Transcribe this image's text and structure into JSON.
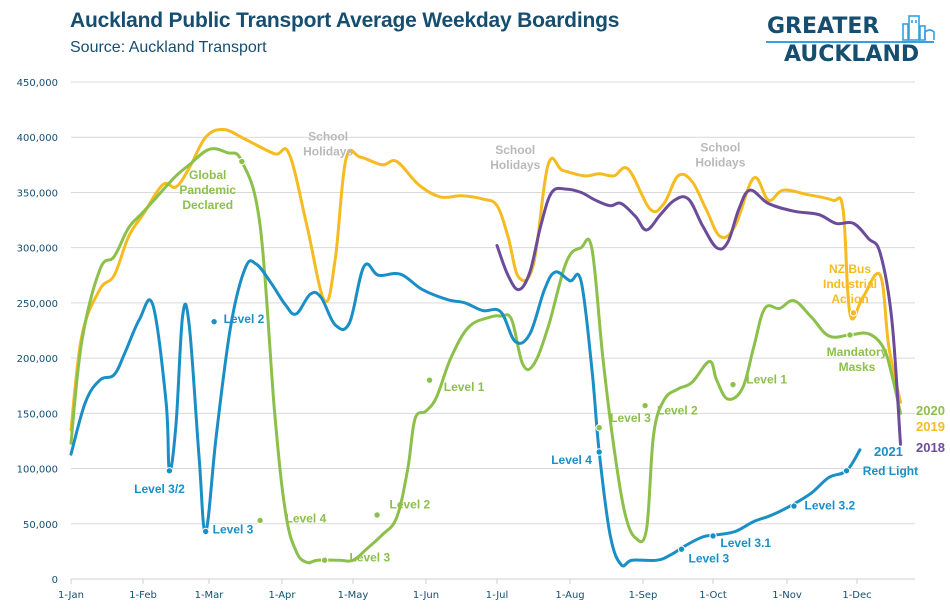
{
  "header": {
    "title": "Auckland Public Transport Average Weekday Boardings",
    "subtitle": "Source: Auckland Transport"
  },
  "logo": {
    "line1": "GREATER",
    "line2": "AUCKLAND"
  },
  "chart_data": {
    "type": "line",
    "title": "Auckland Public Transport Average Weekday Boardings",
    "subtitle": "Source: Auckland Transport",
    "xlabel": "",
    "ylabel": "",
    "x_unit": "months since 1-Jan (0 = 1-Jan, 11 = 1-Dec)",
    "xlim": [
      0,
      12
    ],
    "ylim": [
      0,
      450000
    ],
    "grid": true,
    "x_ticks": [
      "1-Jan",
      "1-Feb",
      "1-Mar",
      "1-Apr",
      "1-May",
      "1-Jun",
      "1-Jul",
      "1-Aug",
      "1-Sep",
      "1-Oct",
      "1-Nov",
      "1-Dec"
    ],
    "y_ticks": [
      0,
      50000,
      100000,
      150000,
      200000,
      250000,
      300000,
      350000,
      400000,
      450000
    ],
    "y_tick_labels": [
      "0",
      "50,000",
      "100,000",
      "150,000",
      "200,000",
      "250,000",
      "300,000",
      "350,000",
      "400,000",
      "450,000"
    ],
    "colors": {
      "2018": "#6b4c9a",
      "2019": "#f5bb21",
      "2020": "#8cc04b",
      "2021": "#1a8fc6",
      "grid": "#d9d9d9",
      "axis_text": "#164e70",
      "holiday": "#b9b9b9"
    },
    "series": [
      {
        "name": "2019",
        "color_key": "2019",
        "points": [
          [
            0,
            135000
          ],
          [
            0.15,
            220000
          ],
          [
            0.4,
            262000
          ],
          [
            0.6,
            275000
          ],
          [
            0.8,
            310000
          ],
          [
            1.0,
            330000
          ],
          [
            1.3,
            357000
          ],
          [
            1.5,
            355000
          ],
          [
            1.7,
            372000
          ],
          [
            1.95,
            400000
          ],
          [
            2.2,
            407000
          ],
          [
            2.5,
            398000
          ],
          [
            2.9,
            385000
          ],
          [
            3.1,
            385000
          ],
          [
            3.35,
            320000
          ],
          [
            3.6,
            252000
          ],
          [
            3.75,
            290000
          ],
          [
            3.9,
            380000
          ],
          [
            4.1,
            382000
          ],
          [
            4.4,
            375000
          ],
          [
            4.6,
            378000
          ],
          [
            4.9,
            357000
          ],
          [
            5.2,
            346000
          ],
          [
            5.5,
            347000
          ],
          [
            5.8,
            344000
          ],
          [
            6.0,
            338000
          ],
          [
            6.15,
            310000
          ],
          [
            6.3,
            273000
          ],
          [
            6.5,
            285000
          ],
          [
            6.7,
            375000
          ],
          [
            6.9,
            370000
          ],
          [
            7.2,
            365000
          ],
          [
            7.4,
            367000
          ],
          [
            7.6,
            365000
          ],
          [
            7.8,
            371000
          ],
          [
            8.1,
            335000
          ],
          [
            8.3,
            340000
          ],
          [
            8.5,
            365000
          ],
          [
            8.7,
            360000
          ],
          [
            8.9,
            335000
          ],
          [
            9.1,
            310000
          ],
          [
            9.3,
            320000
          ],
          [
            9.55,
            363000
          ],
          [
            9.75,
            343000
          ],
          [
            9.95,
            352000
          ],
          [
            10.3,
            348000
          ],
          [
            10.65,
            343000
          ],
          [
            10.8,
            335000
          ],
          [
            10.9,
            240000
          ],
          [
            11.1,
            255000
          ],
          [
            11.4,
            275000
          ],
          [
            11.55,
            210000
          ],
          [
            11.75,
            160000
          ]
        ]
      },
      {
        "name": "2020",
        "color_key": "2020",
        "points": [
          [
            0,
            123000
          ],
          [
            0.15,
            215000
          ],
          [
            0.4,
            280000
          ],
          [
            0.6,
            292000
          ],
          [
            0.8,
            318000
          ],
          [
            1.0,
            332000
          ],
          [
            1.3,
            352000
          ],
          [
            1.5,
            365000
          ],
          [
            1.7,
            375000
          ],
          [
            2.0,
            389000
          ],
          [
            2.25,
            386000
          ],
          [
            2.45,
            378000
          ],
          [
            2.7,
            320000
          ],
          [
            2.9,
            150000
          ],
          [
            3.05,
            60000
          ],
          [
            3.2,
            25000
          ],
          [
            3.35,
            15000
          ],
          [
            3.5,
            17000
          ],
          [
            3.8,
            17000
          ],
          [
            4.0,
            17000
          ],
          [
            4.2,
            28000
          ],
          [
            4.4,
            40000
          ],
          [
            4.6,
            56000
          ],
          [
            4.75,
            100000
          ],
          [
            4.85,
            145000
          ],
          [
            5.0,
            152000
          ],
          [
            5.15,
            165000
          ],
          [
            5.35,
            200000
          ],
          [
            5.6,
            228000
          ],
          [
            5.9,
            237000
          ],
          [
            6.05,
            238000
          ],
          [
            6.2,
            235000
          ],
          [
            6.35,
            195000
          ],
          [
            6.5,
            194000
          ],
          [
            6.7,
            228000
          ],
          [
            6.95,
            287000
          ],
          [
            7.15,
            300000
          ],
          [
            7.3,
            299000
          ],
          [
            7.45,
            200000
          ],
          [
            7.6,
            120000
          ],
          [
            7.75,
            60000
          ],
          [
            7.9,
            37000
          ],
          [
            8.05,
            45000
          ],
          [
            8.15,
            130000
          ],
          [
            8.3,
            162000
          ],
          [
            8.5,
            172000
          ],
          [
            8.7,
            178000
          ],
          [
            8.95,
            197000
          ],
          [
            9.05,
            180000
          ],
          [
            9.2,
            163000
          ],
          [
            9.4,
            173000
          ],
          [
            9.55,
            210000
          ],
          [
            9.7,
            245000
          ],
          [
            9.9,
            245000
          ],
          [
            10.1,
            252000
          ],
          [
            10.35,
            237000
          ],
          [
            10.6,
            220000
          ],
          [
            10.9,
            221000
          ],
          [
            11.2,
            222000
          ],
          [
            11.45,
            210000
          ],
          [
            11.6,
            185000
          ],
          [
            11.75,
            150000
          ]
        ]
      },
      {
        "name": "2018",
        "color_key": "2018",
        "points": [
          [
            6.0,
            302000
          ],
          [
            6.15,
            275000
          ],
          [
            6.3,
            262000
          ],
          [
            6.45,
            278000
          ],
          [
            6.6,
            320000
          ],
          [
            6.75,
            350000
          ],
          [
            6.95,
            353000
          ],
          [
            7.15,
            350000
          ],
          [
            7.35,
            343000
          ],
          [
            7.55,
            338000
          ],
          [
            7.7,
            340000
          ],
          [
            7.9,
            328000
          ],
          [
            8.05,
            316000
          ],
          [
            8.25,
            330000
          ],
          [
            8.45,
            343000
          ],
          [
            8.65,
            344000
          ],
          [
            8.85,
            320000
          ],
          [
            9.05,
            300000
          ],
          [
            9.2,
            305000
          ],
          [
            9.35,
            335000
          ],
          [
            9.5,
            352000
          ],
          [
            9.75,
            340000
          ],
          [
            10.1,
            333000
          ],
          [
            10.45,
            330000
          ],
          [
            10.7,
            322000
          ],
          [
            10.95,
            322000
          ],
          [
            11.2,
            308000
          ],
          [
            11.4,
            295000
          ],
          [
            11.6,
            235000
          ],
          [
            11.75,
            122000
          ]
        ]
      },
      {
        "name": "2021",
        "color_key": "2021",
        "points": [
          [
            0,
            113000
          ],
          [
            0.2,
            160000
          ],
          [
            0.4,
            180000
          ],
          [
            0.6,
            185000
          ],
          [
            0.75,
            205000
          ],
          [
            0.95,
            235000
          ],
          [
            1.15,
            248000
          ],
          [
            1.35,
            160000
          ],
          [
            1.4,
            98000
          ],
          [
            1.5,
            140000
          ],
          [
            1.6,
            238000
          ],
          [
            1.7,
            230000
          ],
          [
            1.85,
            110000
          ],
          [
            1.95,
            43000
          ],
          [
            2.1,
            130000
          ],
          [
            2.3,
            230000
          ],
          [
            2.5,
            282000
          ],
          [
            2.65,
            285000
          ],
          [
            2.85,
            268000
          ],
          [
            3.05,
            248000
          ],
          [
            3.2,
            240000
          ],
          [
            3.4,
            258000
          ],
          [
            3.55,
            255000
          ],
          [
            3.75,
            230000
          ],
          [
            3.95,
            232000
          ],
          [
            4.15,
            283000
          ],
          [
            4.35,
            275000
          ],
          [
            4.65,
            276000
          ],
          [
            4.95,
            262000
          ],
          [
            5.3,
            253000
          ],
          [
            5.55,
            250000
          ],
          [
            5.8,
            243000
          ],
          [
            6.05,
            242000
          ],
          [
            6.25,
            215000
          ],
          [
            6.45,
            222000
          ],
          [
            6.65,
            262000
          ],
          [
            6.8,
            278000
          ],
          [
            7.0,
            270000
          ],
          [
            7.15,
            270000
          ],
          [
            7.3,
            190000
          ],
          [
            7.4,
            115000
          ],
          [
            7.55,
            40000
          ],
          [
            7.7,
            13000
          ],
          [
            7.85,
            17000
          ],
          [
            8.2,
            17000
          ],
          [
            8.4,
            22000
          ],
          [
            8.6,
            30000
          ],
          [
            8.85,
            38000
          ],
          [
            9.05,
            40000
          ],
          [
            9.3,
            43000
          ],
          [
            9.55,
            52000
          ],
          [
            9.8,
            58000
          ],
          [
            10.1,
            68000
          ],
          [
            10.35,
            78000
          ],
          [
            10.6,
            92000
          ],
          [
            10.85,
            98000
          ],
          [
            11.05,
            117000
          ]
        ]
      }
    ],
    "end_labels": [
      {
        "series": "2020",
        "text": "2020"
      },
      {
        "series": "2019",
        "text": "2019"
      },
      {
        "series": "2018",
        "text": "2018"
      },
      {
        "series": "2021",
        "text": "2021"
      }
    ],
    "annotations": [
      {
        "text": [
          "School",
          "Holidays"
        ],
        "color_key": "holiday",
        "x": 3.65,
        "y": 397000,
        "anchor": "middle"
      },
      {
        "text": [
          "School",
          "Holidays"
        ],
        "color_key": "holiday",
        "x": 6.25,
        "y": 385000,
        "anchor": "middle"
      },
      {
        "text": [
          "School",
          "Holidays"
        ],
        "color_key": "holiday",
        "x": 9.1,
        "y": 387000,
        "anchor": "middle"
      },
      {
        "text": [
          "Global",
          "Pandemic",
          "Declared"
        ],
        "color_key": "2020",
        "x": 1.98,
        "y": 362000,
        "anchor": "middle",
        "marker": [
          2.45,
          378000
        ]
      },
      {
        "text": [
          "Level 3/2"
        ],
        "color_key": "2021",
        "x": 1.25,
        "y": 78000,
        "anchor": "middle",
        "marker": [
          1.4,
          98000
        ]
      },
      {
        "text": [
          "Level 3"
        ],
        "color_key": "2021",
        "x": 2.05,
        "y": 41000,
        "anchor": "start",
        "marker": [
          1.95,
          43000
        ]
      },
      {
        "text": [
          "Level 2"
        ],
        "color_key": "2021",
        "x": 2.2,
        "y": 232000,
        "anchor": "start",
        "marker": [
          2.07,
          233000
        ]
      },
      {
        "text": [
          "Level 4"
        ],
        "color_key": "2020",
        "x": 3.05,
        "y": 51000,
        "anchor": "start",
        "marker": [
          2.7,
          53000
        ]
      },
      {
        "text": [
          "Level 3"
        ],
        "color_key": "2020",
        "x": 3.95,
        "y": 16000,
        "anchor": "start",
        "marker": [
          3.6,
          17000
        ]
      },
      {
        "text": [
          "Level 2"
        ],
        "color_key": "2020",
        "x": 4.5,
        "y": 64000,
        "anchor": "start",
        "marker": [
          4.33,
          58000
        ]
      },
      {
        "text": [
          "Level 1"
        ],
        "color_key": "2020",
        "x": 5.25,
        "y": 170000,
        "anchor": "start",
        "marker": [
          5.05,
          180000
        ]
      },
      {
        "text": [
          "Level 4"
        ],
        "color_key": "2021",
        "x": 7.3,
        "y": 104000,
        "anchor": "end",
        "marker": [
          7.4,
          115000
        ]
      },
      {
        "text": [
          "Level 3"
        ],
        "color_key": "2020",
        "x": 7.55,
        "y": 142000,
        "anchor": "start",
        "marker": [
          7.4,
          137000
        ]
      },
      {
        "text": [
          "Level 2"
        ],
        "color_key": "2020",
        "x": 8.2,
        "y": 149000,
        "anchor": "start",
        "marker": [
          8.03,
          157000
        ]
      },
      {
        "text": [
          "Level 1"
        ],
        "color_key": "2020",
        "x": 9.45,
        "y": 177000,
        "anchor": "start",
        "marker": [
          9.27,
          176000
        ]
      },
      {
        "text": [
          "Level 3"
        ],
        "color_key": "2021",
        "x": 8.65,
        "y": 15000,
        "anchor": "start",
        "marker": [
          8.55,
          27000
        ]
      },
      {
        "text": [
          "Level 3.1"
        ],
        "color_key": "2021",
        "x": 9.1,
        "y": 29000,
        "anchor": "start",
        "marker": [
          9.0,
          39000
        ]
      },
      {
        "text": [
          "Level 3.2"
        ],
        "color_key": "2021",
        "x": 10.25,
        "y": 63000,
        "anchor": "start",
        "marker": [
          10.1,
          66000
        ]
      },
      {
        "text": [
          "Red Light"
        ],
        "color_key": "2021",
        "x": 11.1,
        "y": 94000,
        "anchor": "start",
        "marker": [
          10.85,
          98000
        ]
      },
      {
        "text": [
          "NZ Bus",
          "Industrial",
          "Action"
        ],
        "color_key": "2019",
        "x": 10.9,
        "y": 277000,
        "anchor": "middle",
        "marker": [
          10.95,
          241000
        ]
      },
      {
        "text": [
          "Mandatory",
          "Masks"
        ],
        "color_key": "2020",
        "x": 11.0,
        "y": 202000,
        "anchor": "middle",
        "marker": [
          10.9,
          221000
        ]
      }
    ]
  }
}
